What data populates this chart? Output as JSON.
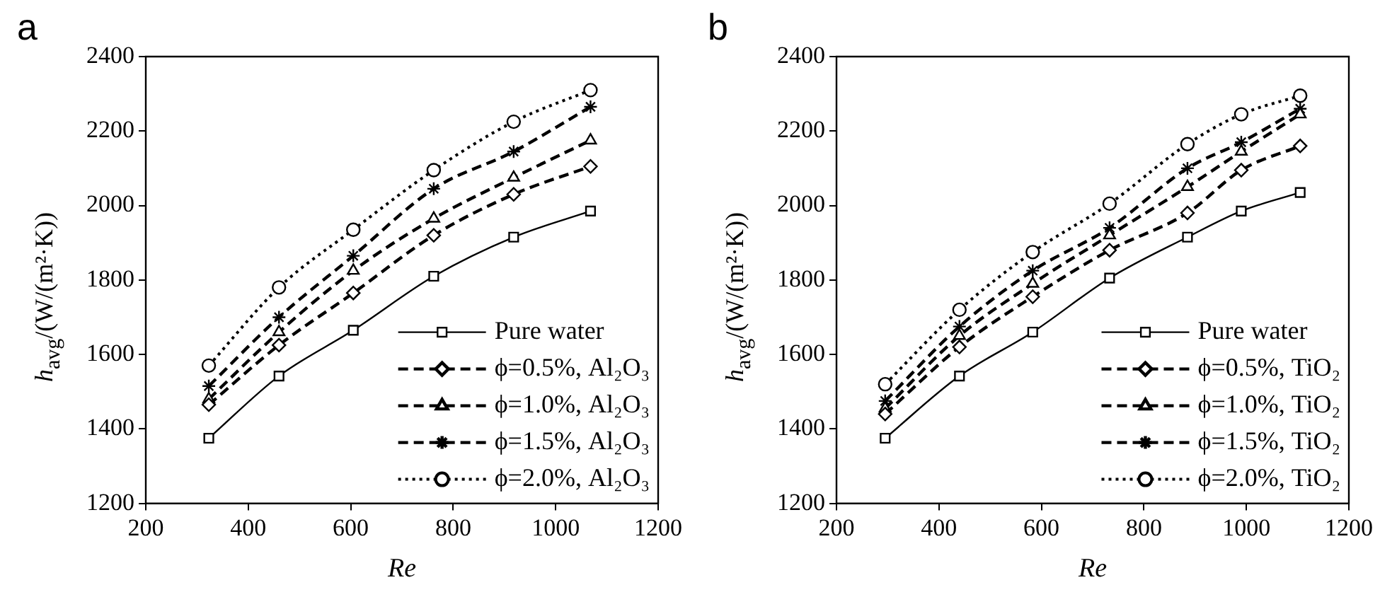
{
  "chart_data": [
    {
      "type": "line",
      "title": "a",
      "xlabel": "Re",
      "ylabel": "h$_{avg}$/(W/(m²·K))",
      "xlim": [
        200,
        1200
      ],
      "xticks": [
        200,
        400,
        600,
        800,
        1000,
        1200
      ],
      "ylim": [
        1200,
        2400
      ],
      "yticks": [
        1200,
        1400,
        1600,
        1800,
        2000,
        2200,
        2400
      ],
      "grid": false,
      "legend": "bottom right",
      "x": [
        323,
        460,
        605,
        762,
        918,
        1068
      ],
      "series": [
        {
          "name": "Pure water",
          "color": "#000000",
          "marker": "square",
          "line_style": "solid",
          "values": [
            1375,
            1542,
            1665,
            1810,
            1915,
            1985
          ]
        },
        {
          "name": "ϕ=0.5%, Al₂O₃",
          "color": "#000000",
          "marker": "diamond",
          "line_style": "dashed",
          "values": [
            1465,
            1625,
            1765,
            1920,
            2030,
            2105
          ]
        },
        {
          "name": "ϕ=1.0%, Al₂O₃",
          "color": "#000000",
          "marker": "triangle",
          "line_style": "dashed",
          "values": [
            1480,
            1660,
            1825,
            1965,
            2075,
            2175
          ]
        },
        {
          "name": "ϕ=1.5%, Al₂O₃",
          "color": "#000000",
          "marker": "cross",
          "line_style": "dashed",
          "values": [
            1515,
            1700,
            1865,
            2045,
            2145,
            2265
          ]
        },
        {
          "name": "ϕ=2.0%, Al₂O₃",
          "color": "#000000",
          "marker": "circle",
          "line_style": "dotted",
          "values": [
            1570,
            1780,
            1935,
            2095,
            2225,
            2310
          ]
        }
      ]
    },
    {
      "type": "line",
      "title": "b",
      "xlabel": "Re",
      "ylabel": "h$_{avg}$/(W/(m²·K))",
      "xlim": [
        200,
        1200
      ],
      "xticks": [
        200,
        400,
        600,
        800,
        1000,
        1200
      ],
      "ylim": [
        1200,
        2400
      ],
      "yticks": [
        1200,
        1400,
        1600,
        1800,
        2000,
        2200,
        2400
      ],
      "grid": false,
      "legend": "bottom right",
      "x": [
        295,
        440,
        583,
        733,
        885,
        990,
        1105
      ],
      "series": [
        {
          "name": "Pure water",
          "color": "#000000",
          "marker": "square",
          "line_style": "solid",
          "values": [
            1375,
            1542,
            1660,
            1805,
            1915,
            1985,
            2035
          ]
        },
        {
          "name": "ϕ=0.5%, TiO₂",
          "color": "#000000",
          "marker": "diamond",
          "line_style": "dashed",
          "values": [
            1440,
            1620,
            1755,
            1880,
            1980,
            2095,
            2160
          ]
        },
        {
          "name": "ϕ=1.0%, TiO₂",
          "color": "#000000",
          "marker": "triangle",
          "line_style": "dashed",
          "values": [
            1455,
            1650,
            1790,
            1920,
            2050,
            2145,
            2245
          ]
        },
        {
          "name": "ϕ=1.5%, TiO₂",
          "color": "#000000",
          "marker": "cross",
          "line_style": "dashed",
          "values": [
            1475,
            1675,
            1825,
            1940,
            2100,
            2170,
            2260
          ]
        },
        {
          "name": "ϕ=2.0%, TiO₂",
          "color": "#000000",
          "marker": "circle",
          "line_style": "dotted",
          "values": [
            1520,
            1720,
            1875,
            2005,
            2165,
            2245,
            2295
          ]
        }
      ]
    }
  ]
}
